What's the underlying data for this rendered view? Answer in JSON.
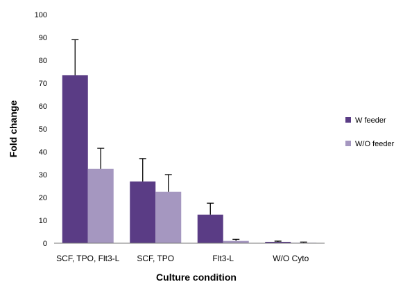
{
  "chart_data": {
    "type": "bar",
    "xlabel": "Culture condition",
    "ylabel": "Fold change",
    "ylim": [
      0,
      100
    ],
    "yticks": [
      0,
      10,
      20,
      30,
      40,
      50,
      60,
      70,
      80,
      90,
      100
    ],
    "categories": [
      "SCF, TPO, Flt3-L",
      "SCF, TPO",
      "Flt3-L",
      "W/O Cyto"
    ],
    "series": [
      {
        "name": "W feeder",
        "color": "#5a3c85",
        "values": [
          73.5,
          27,
          12.5,
          0.6
        ],
        "errors": [
          15.5,
          10,
          5,
          0.3
        ]
      },
      {
        "name": "W/O feeder",
        "color": "#a597c0",
        "values": [
          32.5,
          22.5,
          1,
          0.2
        ],
        "errors": [
          9,
          7.5,
          0.7,
          0.3
        ]
      }
    ],
    "legend_position": "right",
    "grid": false
  }
}
